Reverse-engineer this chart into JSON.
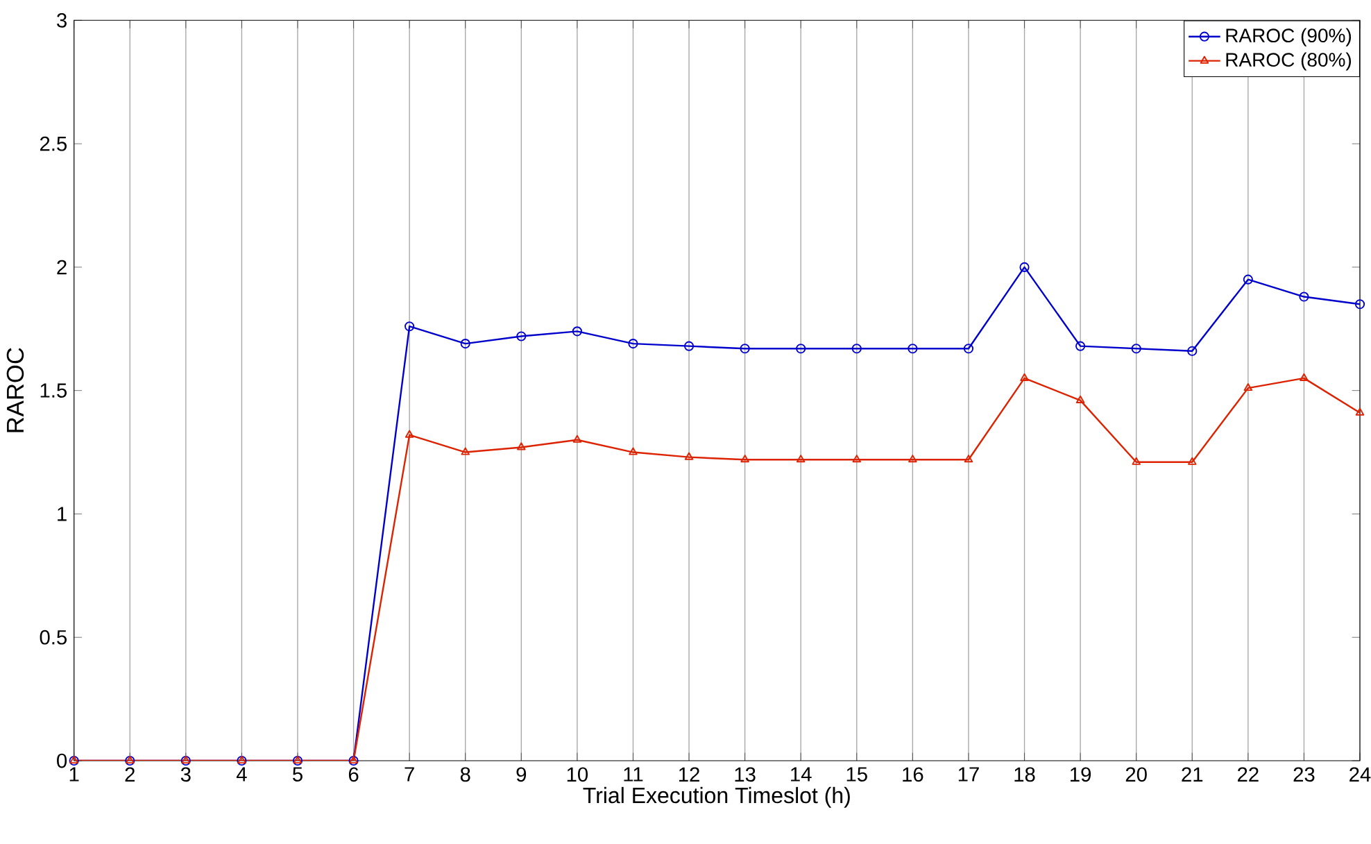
{
  "chart_data": {
    "type": "line",
    "xlabel": "Trial Execution Timeslot (h)",
    "ylabel": "RAROC",
    "x": [
      1,
      2,
      3,
      4,
      5,
      6,
      7,
      8,
      9,
      10,
      11,
      12,
      13,
      14,
      15,
      16,
      17,
      18,
      19,
      20,
      21,
      22,
      23,
      24
    ],
    "series": [
      {
        "name": "RAROC (90%)",
        "color": "#0000cc",
        "marker": "circle",
        "values": [
          0,
          0,
          0,
          0,
          0,
          0,
          1.76,
          1.69,
          1.72,
          1.74,
          1.69,
          1.68,
          1.67,
          1.67,
          1.67,
          1.67,
          1.67,
          2.0,
          1.68,
          1.67,
          1.66,
          1.95,
          1.88,
          1.85
        ]
      },
      {
        "name": "RAROC (80%)",
        "color": "#dd2200",
        "marker": "triangle",
        "values": [
          0,
          0,
          0,
          0,
          0,
          0,
          1.32,
          1.25,
          1.27,
          1.3,
          1.25,
          1.23,
          1.22,
          1.22,
          1.22,
          1.22,
          1.22,
          1.55,
          1.46,
          1.21,
          1.21,
          1.51,
          1.55,
          1.41
        ]
      }
    ],
    "xlim": [
      1,
      24
    ],
    "xticks": [
      1,
      2,
      3,
      4,
      5,
      6,
      7,
      8,
      9,
      10,
      11,
      12,
      13,
      14,
      15,
      16,
      17,
      18,
      19,
      20,
      21,
      22,
      23,
      24
    ],
    "ylim": [
      0,
      3
    ],
    "yticks": [
      0,
      0.5,
      1,
      1.5,
      2,
      2.5,
      3
    ],
    "grid": "x",
    "legend": "top right",
    "line_style": "solid"
  }
}
